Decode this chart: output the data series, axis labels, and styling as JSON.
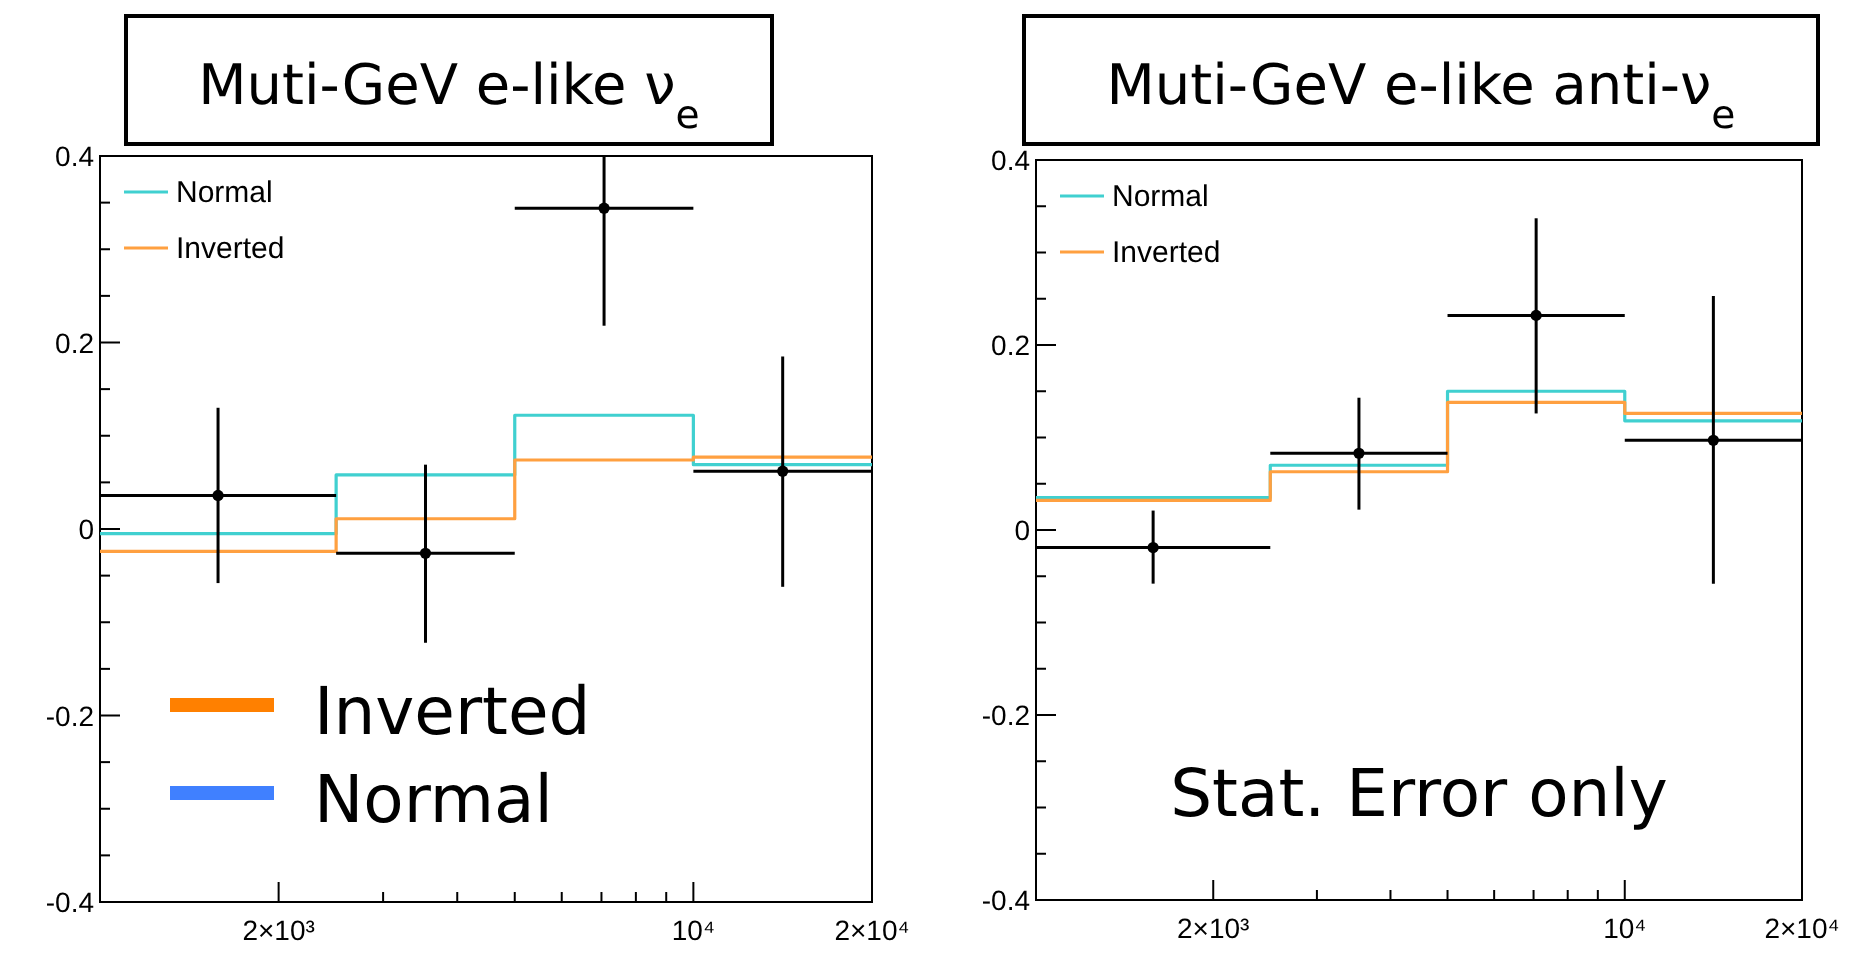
{
  "chart_data": [
    {
      "type": "step",
      "title": "Muti-GeV e-like ν$_{e}$",
      "log": "x",
      "legend": "top left",
      "xlim": [
        1000,
        20000
      ],
      "xticks": [
        {
          "value": 2000,
          "label": "2×10³"
        },
        {
          "value": 3000,
          "label": null
        },
        {
          "value": 4000,
          "label": null
        },
        {
          "value": 5000,
          "label": null
        },
        {
          "value": 6000,
          "label": null
        },
        {
          "value": 7000,
          "label": null
        },
        {
          "value": 8000,
          "label": null
        },
        {
          "value": 9000,
          "label": null
        },
        {
          "value": 10000,
          "label": "10⁴"
        },
        {
          "value": 20000,
          "label": "2×10⁴"
        }
      ],
      "ylim": [
        -0.4,
        0.4
      ],
      "yticks": [
        -0.4,
        {
          "value": -0.35,
          "label": null
        },
        {
          "value": -0.3,
          "label": null
        },
        {
          "value": -0.25,
          "label": null
        },
        -0.2,
        {
          "value": -0.15,
          "label": null
        },
        {
          "value": -0.1,
          "label": null
        },
        {
          "value": -0.05,
          "label": null
        },
        0,
        {
          "value": 0.05,
          "label": null
        },
        {
          "value": 0.1,
          "label": null
        },
        {
          "value": 0.15,
          "label": null
        },
        0.2,
        {
          "value": 0.25,
          "label": null
        },
        {
          "value": 0.3,
          "label": null
        },
        {
          "value": 0.35,
          "label": null
        },
        0.4
      ],
      "annotations": [
        "Inverted",
        "Normal"
      ],
      "series": [
        {
          "name": "Normal",
          "color": "#40d0d0",
          "x": [
            1000,
            2500,
            5000,
            10000,
            20000
          ],
          "values": [
            -0.005,
            0.058,
            0.122,
            0.069,
            0.069
          ]
        },
        {
          "name": "Inverted",
          "color": "#ffa040",
          "x": [
            1000,
            2500,
            5000,
            10000,
            20000
          ],
          "values": [
            -0.024,
            0.011,
            0.074,
            0.077,
            0.077
          ]
        },
        {
          "type": "scatter",
          "marker": "circle",
          "color": "#000000",
          "x": [
            1581,
            3536,
            7071,
            14142
          ],
          "values": [
            0.036,
            -0.026,
            0.344,
            0.062
          ],
          "errors": [
            [
              -0.058,
              0.13
            ],
            [
              -0.122,
              0.069
            ],
            [
              0.218,
              0.4
            ],
            [
              -0.062,
              0.185
            ]
          ],
          "xerrors": [
            [
              1000,
              2500
            ],
            [
              2500,
              5000
            ],
            [
              5000,
              10000
            ],
            [
              10000,
              20000
            ]
          ]
        }
      ]
    },
    {
      "type": "step",
      "title": "Muti-GeV e-like anti-ν$_{e}$",
      "log": "x",
      "legend": "top left",
      "xlim": [
        1000,
        20000
      ],
      "xticks": [
        {
          "value": 2000,
          "label": "2×10³"
        },
        {
          "value": 3000,
          "label": null
        },
        {
          "value": 4000,
          "label": null
        },
        {
          "value": 5000,
          "label": null
        },
        {
          "value": 6000,
          "label": null
        },
        {
          "value": 7000,
          "label": null
        },
        {
          "value": 8000,
          "label": null
        },
        {
          "value": 9000,
          "label": null
        },
        {
          "value": 10000,
          "label": "10⁴"
        },
        {
          "value": 20000,
          "label": "2×10⁴"
        }
      ],
      "ylim": [
        -0.4,
        0.4
      ],
      "yticks": [
        -0.4,
        {
          "value": -0.35,
          "label": null
        },
        {
          "value": -0.3,
          "label": null
        },
        {
          "value": -0.25,
          "label": null
        },
        -0.2,
        {
          "value": -0.15,
          "label": null
        },
        {
          "value": -0.1,
          "label": null
        },
        {
          "value": -0.05,
          "label": null
        },
        0,
        {
          "value": 0.05,
          "label": null
        },
        {
          "value": 0.1,
          "label": null
        },
        {
          "value": 0.15,
          "label": null
        },
        0.2,
        {
          "value": 0.25,
          "label": null
        },
        {
          "value": 0.3,
          "label": null
        },
        {
          "value": 0.35,
          "label": null
        },
        0.4
      ],
      "annotations": [
        "Stat. Error only"
      ],
      "series": [
        {
          "name": "Normal",
          "color": "#40d0d0",
          "x": [
            1000,
            2500,
            5000,
            10000,
            20000
          ],
          "values": [
            0.035,
            0.07,
            0.15,
            0.118,
            0.118
          ]
        },
        {
          "name": "Inverted",
          "color": "#ffa040",
          "x": [
            1000,
            2500,
            5000,
            10000,
            20000
          ],
          "values": [
            0.032,
            0.063,
            0.138,
            0.126,
            0.126
          ]
        },
        {
          "type": "scatter",
          "marker": "circle",
          "color": "#000000",
          "x": [
            1581,
            3536,
            7071,
            14142
          ],
          "values": [
            -0.019,
            0.083,
            0.232,
            0.097
          ],
          "errors": [
            [
              -0.058,
              0.021
            ],
            [
              0.022,
              0.143
            ],
            [
              0.126,
              0.337
            ],
            [
              -0.058,
              0.253
            ]
          ],
          "xerrors": [
            [
              1000,
              2500
            ],
            [
              2500,
              5000
            ],
            [
              5000,
              10000
            ],
            [
              10000,
              20000
            ]
          ]
        }
      ]
    }
  ]
}
